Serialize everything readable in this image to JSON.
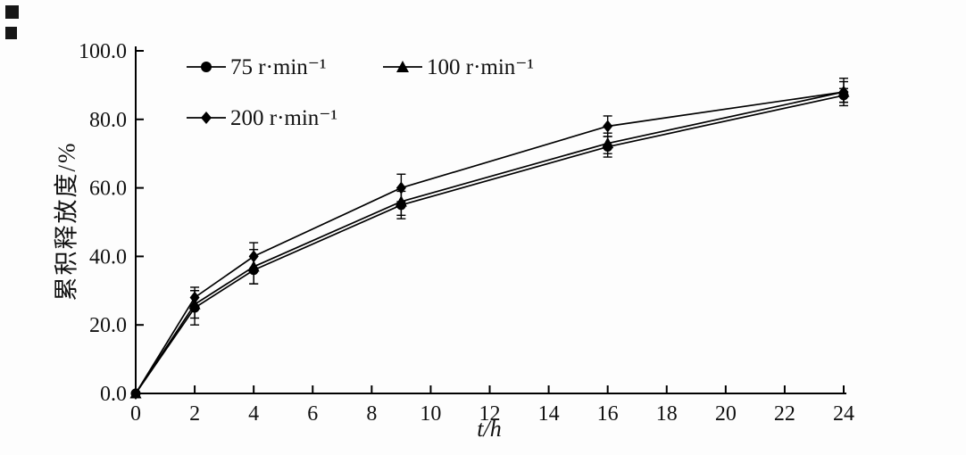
{
  "chart_data": {
    "type": "line",
    "title": "",
    "xlabel": "t/h",
    "ylabel": "累积释放度/%",
    "xlim": [
      0,
      24
    ],
    "ylim": [
      0,
      100
    ],
    "x_ticks": [
      0,
      2,
      4,
      6,
      8,
      10,
      12,
      14,
      16,
      18,
      20,
      22,
      24
    ],
    "y_ticks": [
      0,
      20,
      40,
      60,
      80,
      100
    ],
    "y_tick_labels": [
      "0.0",
      "20.0",
      "40.0",
      "60.0",
      "80.0",
      "100.0"
    ],
    "grid": false,
    "legend_position": "inside top-left",
    "axis_color": "#000000",
    "x": [
      0,
      2,
      4,
      9,
      16,
      24
    ],
    "series": [
      {
        "name": "75 r·min⁻¹",
        "marker": "circle",
        "color": "#000000",
        "values": [
          0,
          25,
          36,
          55,
          72,
          87
        ],
        "errors": [
          0,
          5,
          4,
          4,
          3,
          2
        ]
      },
      {
        "name": "100 r·min⁻¹",
        "marker": "triangle",
        "color": "#000000",
        "values": [
          0,
          26,
          37,
          56,
          73,
          88
        ],
        "errors": [
          0,
          4,
          5,
          4,
          3,
          3
        ]
      },
      {
        "name": "200 r·min⁻¹",
        "marker": "diamond",
        "color": "#000000",
        "values": [
          0,
          28,
          40,
          60,
          78,
          88
        ],
        "errors": [
          0,
          3,
          4,
          4,
          3,
          4
        ]
      }
    ]
  }
}
